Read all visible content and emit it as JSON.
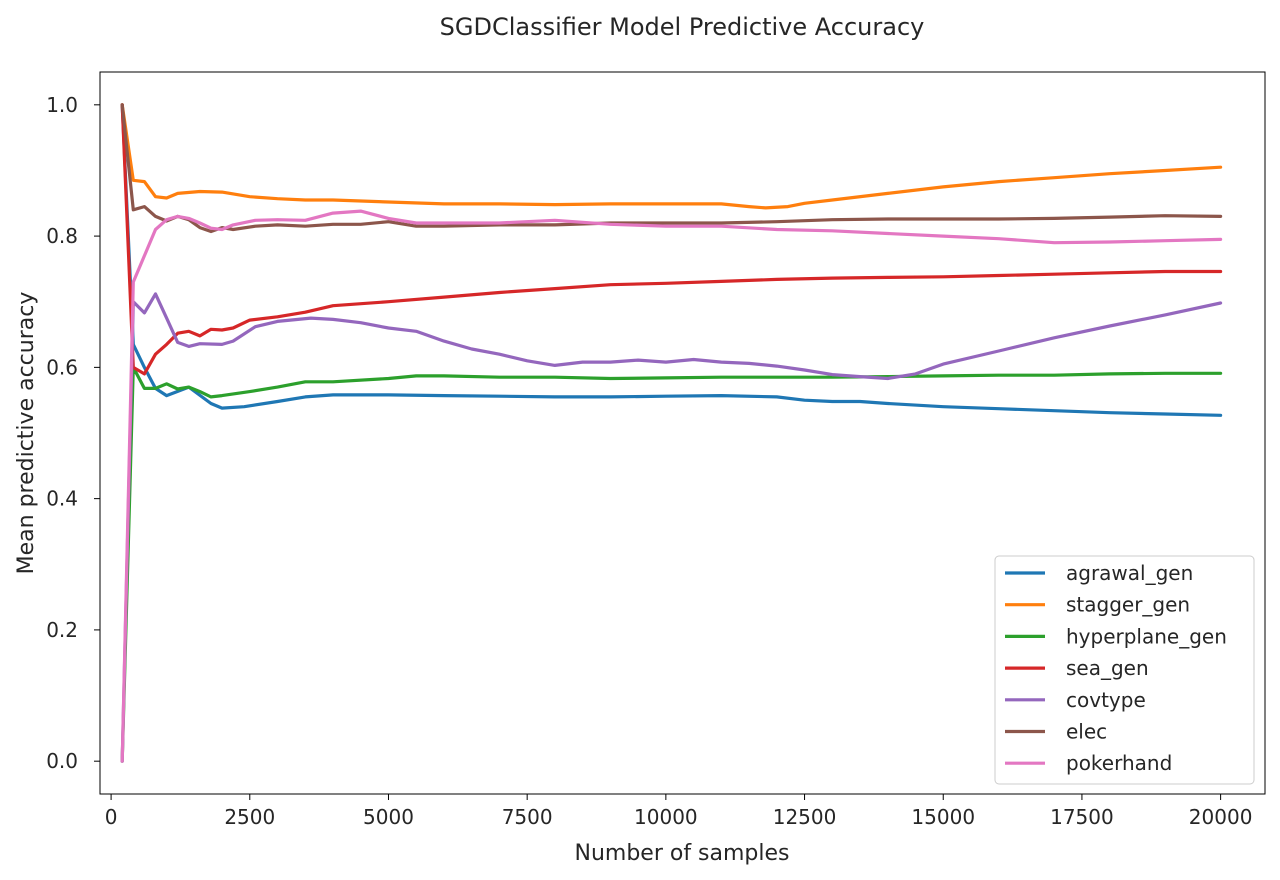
{
  "chart_data": {
    "type": "line",
    "title": "SGDClassifier Model Predictive Accuracy",
    "xlabel": "Number of samples",
    "ylabel": "Mean predictive accuracy",
    "xlim": [
      -200,
      20800
    ],
    "ylim": [
      -0.05,
      1.05
    ],
    "xticks": [
      0,
      2500,
      5000,
      7500,
      10000,
      12500,
      15000,
      17500,
      20000
    ],
    "xtick_labels": [
      "0",
      "2500",
      "5000",
      "7500",
      "10000",
      "12500",
      "15000",
      "17500",
      "20000"
    ],
    "yticks": [
      0.0,
      0.2,
      0.4,
      0.6,
      0.8,
      1.0
    ],
    "ytick_labels": [
      "0.0",
      "0.2",
      "0.4",
      "0.6",
      "0.8",
      "1.0"
    ],
    "grid": false,
    "legend_position": "lower-right",
    "series": [
      {
        "name": "agrawal_gen",
        "color": "#1f77b4",
        "points": [
          [
            200,
            1.0
          ],
          [
            400,
            0.635
          ],
          [
            600,
            0.6
          ],
          [
            800,
            0.568
          ],
          [
            1000,
            0.557
          ],
          [
            1400,
            0.57
          ],
          [
            1800,
            0.545
          ],
          [
            2000,
            0.538
          ],
          [
            2400,
            0.54
          ],
          [
            3000,
            0.548
          ],
          [
            3500,
            0.555
          ],
          [
            4000,
            0.558
          ],
          [
            5000,
            0.558
          ],
          [
            6000,
            0.557
          ],
          [
            7000,
            0.556
          ],
          [
            8000,
            0.555
          ],
          [
            9000,
            0.555
          ],
          [
            10000,
            0.556
          ],
          [
            11000,
            0.557
          ],
          [
            12000,
            0.555
          ],
          [
            12500,
            0.55
          ],
          [
            13000,
            0.548
          ],
          [
            13500,
            0.548
          ],
          [
            14000,
            0.545
          ],
          [
            15000,
            0.54
          ],
          [
            16000,
            0.537
          ],
          [
            17000,
            0.534
          ],
          [
            18000,
            0.531
          ],
          [
            19000,
            0.529
          ],
          [
            20000,
            0.527
          ]
        ]
      },
      {
        "name": "stagger_gen",
        "color": "#ff7f0e",
        "points": [
          [
            200,
            1.0
          ],
          [
            400,
            0.885
          ],
          [
            600,
            0.883
          ],
          [
            800,
            0.86
          ],
          [
            1000,
            0.858
          ],
          [
            1200,
            0.865
          ],
          [
            1600,
            0.868
          ],
          [
            2000,
            0.867
          ],
          [
            2500,
            0.86
          ],
          [
            3000,
            0.857
          ],
          [
            3500,
            0.855
          ],
          [
            4000,
            0.855
          ],
          [
            5000,
            0.852
          ],
          [
            6000,
            0.849
          ],
          [
            7000,
            0.849
          ],
          [
            8000,
            0.848
          ],
          [
            9000,
            0.849
          ],
          [
            10000,
            0.849
          ],
          [
            11000,
            0.849
          ],
          [
            11500,
            0.845
          ],
          [
            11800,
            0.843
          ],
          [
            12200,
            0.845
          ],
          [
            12500,
            0.85
          ],
          [
            13000,
            0.855
          ],
          [
            14000,
            0.865
          ],
          [
            15000,
            0.875
          ],
          [
            16000,
            0.883
          ],
          [
            17000,
            0.889
          ],
          [
            18000,
            0.895
          ],
          [
            19000,
            0.9
          ],
          [
            20000,
            0.905
          ]
        ]
      },
      {
        "name": "hyperplane_gen",
        "color": "#2ca02c",
        "points": [
          [
            200,
            0.0
          ],
          [
            400,
            0.6
          ],
          [
            600,
            0.568
          ],
          [
            800,
            0.568
          ],
          [
            1000,
            0.575
          ],
          [
            1200,
            0.567
          ],
          [
            1400,
            0.57
          ],
          [
            1600,
            0.563
          ],
          [
            1800,
            0.555
          ],
          [
            2000,
            0.557
          ],
          [
            2500,
            0.563
          ],
          [
            3000,
            0.57
          ],
          [
            3500,
            0.578
          ],
          [
            4000,
            0.578
          ],
          [
            5000,
            0.583
          ],
          [
            5500,
            0.587
          ],
          [
            6000,
            0.587
          ],
          [
            7000,
            0.585
          ],
          [
            8000,
            0.585
          ],
          [
            9000,
            0.583
          ],
          [
            10000,
            0.584
          ],
          [
            11000,
            0.585
          ],
          [
            12000,
            0.585
          ],
          [
            13000,
            0.585
          ],
          [
            14000,
            0.586
          ],
          [
            15000,
            0.587
          ],
          [
            16000,
            0.588
          ],
          [
            17000,
            0.588
          ],
          [
            18000,
            0.59
          ],
          [
            19000,
            0.591
          ],
          [
            20000,
            0.591
          ]
        ]
      },
      {
        "name": "sea_gen",
        "color": "#d62728",
        "points": [
          [
            200,
            1.0
          ],
          [
            400,
            0.6
          ],
          [
            600,
            0.59
          ],
          [
            800,
            0.62
          ],
          [
            1000,
            0.635
          ],
          [
            1200,
            0.652
          ],
          [
            1400,
            0.655
          ],
          [
            1600,
            0.648
          ],
          [
            1800,
            0.658
          ],
          [
            2000,
            0.657
          ],
          [
            2200,
            0.66
          ],
          [
            2500,
            0.672
          ],
          [
            3000,
            0.677
          ],
          [
            3500,
            0.684
          ],
          [
            4000,
            0.694
          ],
          [
            5000,
            0.7
          ],
          [
            6000,
            0.707
          ],
          [
            7000,
            0.714
          ],
          [
            8000,
            0.72
          ],
          [
            9000,
            0.726
          ],
          [
            10000,
            0.728
          ],
          [
            11000,
            0.731
          ],
          [
            12000,
            0.734
          ],
          [
            13000,
            0.736
          ],
          [
            14000,
            0.737
          ],
          [
            15000,
            0.738
          ],
          [
            16000,
            0.74
          ],
          [
            17000,
            0.742
          ],
          [
            18000,
            0.744
          ],
          [
            19000,
            0.746
          ],
          [
            20000,
            0.746
          ]
        ]
      },
      {
        "name": "covtype",
        "color": "#9467bd",
        "points": [
          [
            200,
            0.0
          ],
          [
            400,
            0.7
          ],
          [
            600,
            0.683
          ],
          [
            800,
            0.712
          ],
          [
            1000,
            0.675
          ],
          [
            1200,
            0.638
          ],
          [
            1400,
            0.632
          ],
          [
            1600,
            0.636
          ],
          [
            2000,
            0.635
          ],
          [
            2200,
            0.64
          ],
          [
            2600,
            0.662
          ],
          [
            3000,
            0.67
          ],
          [
            3600,
            0.675
          ],
          [
            4000,
            0.673
          ],
          [
            4500,
            0.668
          ],
          [
            5000,
            0.66
          ],
          [
            5500,
            0.655
          ],
          [
            6000,
            0.64
          ],
          [
            6500,
            0.628
          ],
          [
            7000,
            0.62
          ],
          [
            7500,
            0.61
          ],
          [
            8000,
            0.603
          ],
          [
            8500,
            0.608
          ],
          [
            9000,
            0.608
          ],
          [
            9500,
            0.611
          ],
          [
            10000,
            0.608
          ],
          [
            10500,
            0.612
          ],
          [
            11000,
            0.608
          ],
          [
            11500,
            0.606
          ],
          [
            12000,
            0.602
          ],
          [
            12500,
            0.596
          ],
          [
            13000,
            0.589
          ],
          [
            13500,
            0.586
          ],
          [
            14000,
            0.583
          ],
          [
            14500,
            0.59
          ],
          [
            15000,
            0.605
          ],
          [
            16000,
            0.625
          ],
          [
            17000,
            0.645
          ],
          [
            18000,
            0.663
          ],
          [
            19000,
            0.68
          ],
          [
            20000,
            0.698
          ]
        ]
      },
      {
        "name": "elec",
        "color": "#8c564b",
        "points": [
          [
            200,
            1.0
          ],
          [
            400,
            0.84
          ],
          [
            600,
            0.845
          ],
          [
            800,
            0.83
          ],
          [
            1000,
            0.823
          ],
          [
            1200,
            0.83
          ],
          [
            1400,
            0.825
          ],
          [
            1600,
            0.813
          ],
          [
            1800,
            0.807
          ],
          [
            2000,
            0.813
          ],
          [
            2200,
            0.81
          ],
          [
            2600,
            0.815
          ],
          [
            3000,
            0.817
          ],
          [
            3500,
            0.815
          ],
          [
            4000,
            0.818
          ],
          [
            4500,
            0.818
          ],
          [
            5000,
            0.822
          ],
          [
            5500,
            0.815
          ],
          [
            6000,
            0.815
          ],
          [
            7000,
            0.817
          ],
          [
            8000,
            0.817
          ],
          [
            9000,
            0.82
          ],
          [
            10000,
            0.82
          ],
          [
            11000,
            0.82
          ],
          [
            12000,
            0.822
          ],
          [
            13000,
            0.825
          ],
          [
            14000,
            0.826
          ],
          [
            15000,
            0.826
          ],
          [
            16000,
            0.826
          ],
          [
            17000,
            0.827
          ],
          [
            18000,
            0.829
          ],
          [
            19000,
            0.831
          ],
          [
            20000,
            0.83
          ]
        ]
      },
      {
        "name": "pokerhand",
        "color": "#e377c2",
        "points": [
          [
            200,
            0.0
          ],
          [
            400,
            0.73
          ],
          [
            600,
            0.77
          ],
          [
            800,
            0.81
          ],
          [
            1000,
            0.825
          ],
          [
            1200,
            0.83
          ],
          [
            1400,
            0.827
          ],
          [
            1600,
            0.82
          ],
          [
            1800,
            0.812
          ],
          [
            2000,
            0.81
          ],
          [
            2200,
            0.817
          ],
          [
            2600,
            0.824
          ],
          [
            3000,
            0.825
          ],
          [
            3500,
            0.824
          ],
          [
            4000,
            0.835
          ],
          [
            4500,
            0.838
          ],
          [
            5000,
            0.827
          ],
          [
            5500,
            0.82
          ],
          [
            6000,
            0.82
          ],
          [
            7000,
            0.82
          ],
          [
            8000,
            0.824
          ],
          [
            9000,
            0.818
          ],
          [
            10000,
            0.815
          ],
          [
            11000,
            0.815
          ],
          [
            12000,
            0.81
          ],
          [
            13000,
            0.808
          ],
          [
            14000,
            0.804
          ],
          [
            15000,
            0.8
          ],
          [
            16000,
            0.796
          ],
          [
            17000,
            0.79
          ],
          [
            18000,
            0.791
          ],
          [
            19000,
            0.793
          ],
          [
            20000,
            0.795
          ]
        ]
      }
    ]
  }
}
